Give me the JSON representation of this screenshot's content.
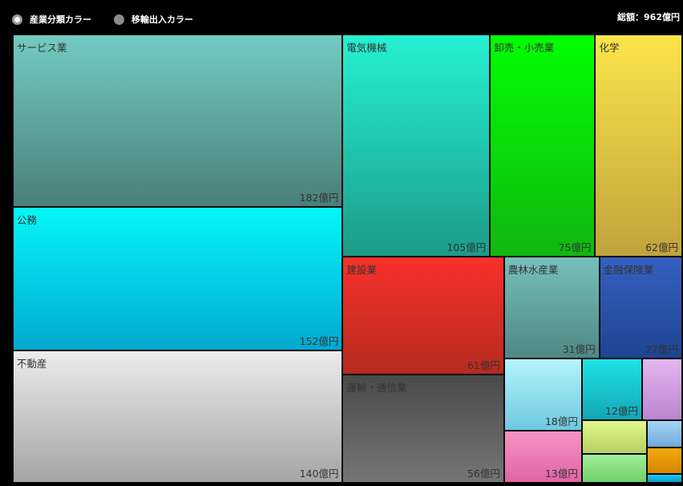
{
  "header": {
    "radio_industry": "産業分類カラー",
    "radio_trade": "移輸出入カラー",
    "total": "総額：962億円"
  },
  "colors": {
    "background": "#000000",
    "text": "#333333"
  },
  "chart_data": {
    "type": "treemap",
    "unit": "億円",
    "total": 962,
    "items": [
      {
        "name": "サービス業",
        "value": 182,
        "label": "182億円",
        "color_top": "#72cbc2",
        "color_bottom": "#4a7f7a"
      },
      {
        "name": "公務",
        "value": 152,
        "label": "152億円",
        "color_top": "#05f6f8",
        "color_bottom": "#02a9d0"
      },
      {
        "name": "不動産",
        "value": 140,
        "label": "140億円",
        "color_top": "#ececec",
        "color_bottom": "#a5a5a5"
      },
      {
        "name": "電気機械",
        "value": 105,
        "label": "105億円",
        "color_top": "#25f1d2",
        "color_bottom": "#1c9b88"
      },
      {
        "name": "卸売・小売業",
        "value": 75,
        "label": "75億円",
        "color_top": "#02ff02",
        "color_bottom": "#11b711"
      },
      {
        "name": "化学",
        "value": 62,
        "label": "62億円",
        "color_top": "#fbe54a",
        "color_bottom": "#c0a33c"
      },
      {
        "name": "建設業",
        "value": 61,
        "label": "61億円",
        "color_top": "#f7302a",
        "color_bottom": "#b62b20"
      },
      {
        "name": "運輸・通信業",
        "value": 56,
        "label": "56億円",
        "color_top": "#4a4a4a",
        "color_bottom": "#757575"
      },
      {
        "name": "農林水産業",
        "value": 31,
        "label": "31億円",
        "color_top": "#76c0bb",
        "color_bottom": "#4f8784"
      },
      {
        "name": "金融保険業",
        "value": 27,
        "label": "27億円",
        "color_top": "#3560c0",
        "color_bottom": "#1e4592"
      },
      {
        "name": "",
        "value": 18,
        "label": "18億円",
        "color_top": "#b3f5fb",
        "color_bottom": "#6ec8de"
      },
      {
        "name": "",
        "value": 13,
        "label": "13億円",
        "color_top": "#f693c6",
        "color_bottom": "#df64a5"
      },
      {
        "name": "",
        "value": 12,
        "label": "12億円",
        "color_top": "#1ee3e6",
        "color_bottom": "#13a6b4"
      },
      {
        "name": "",
        "value": 8,
        "label": "",
        "color_top": "#e3b6ef",
        "color_bottom": "#bd84cf"
      },
      {
        "name": "",
        "value": 7,
        "label": "",
        "color_top": "#e0f98c",
        "color_bottom": "#b6cf63"
      },
      {
        "name": "",
        "value": 6,
        "label": "",
        "color_top": "#a0ef9b",
        "color_bottom": "#6fd06a"
      },
      {
        "name": "",
        "value": 3,
        "label": "",
        "color_top": "#a6d6f6",
        "color_bottom": "#6fa9da"
      },
      {
        "name": "",
        "value": 3,
        "label": "",
        "color_top": "#f4a90d",
        "color_bottom": "#d48604"
      },
      {
        "name": "",
        "value": 1,
        "label": "",
        "color_top": "#12c9f3",
        "color_bottom": "#0c9dc8"
      }
    ]
  }
}
